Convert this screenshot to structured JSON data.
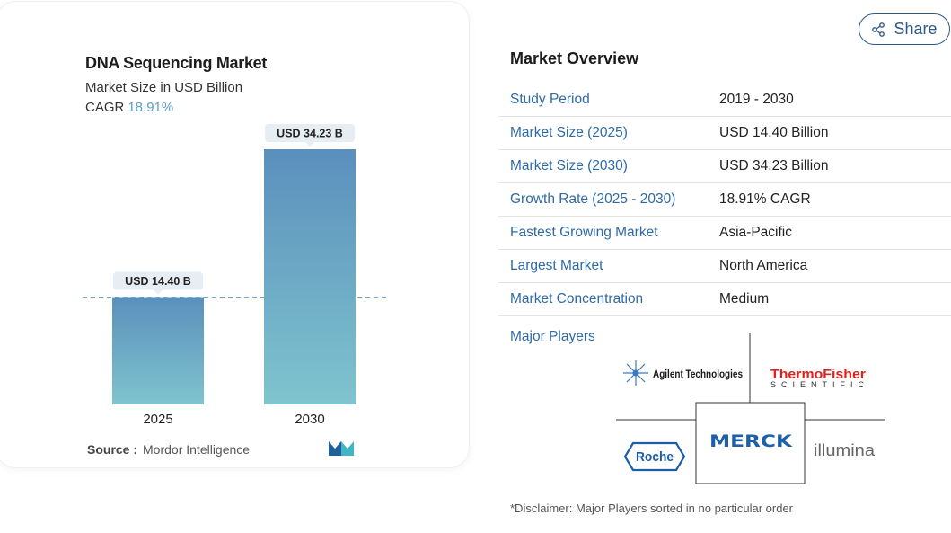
{
  "chart_data": {
    "type": "bar",
    "title": "DNA Sequencing Market",
    "subtitle": "Market Size in USD Billion",
    "cagr_label": "CAGR",
    "cagr_value": "18.91%",
    "categories": [
      "2025",
      "2030"
    ],
    "values": [
      14.4,
      34.23
    ],
    "data_labels": [
      "USD 14.40 B",
      "USD 34.23 B"
    ],
    "ylim": [
      0,
      34.23
    ],
    "reference_line_value": 14.4,
    "grid": false,
    "colors": {
      "bar_top": "#5b8fbc",
      "bar_bottom": "#7fc4ce",
      "label_bg": "#e6eef4",
      "ref_line": "#6fa7c9"
    }
  },
  "source": {
    "label": "Source :",
    "value": "Mordor Intelligence"
  },
  "share_label": "Share",
  "overview": {
    "title": "Market Overview",
    "rows": [
      {
        "label": "Study Period",
        "value": "2019 - 2030"
      },
      {
        "label": "Market Size (2025)",
        "value": "USD 14.40 Billion"
      },
      {
        "label": "Market Size (2030)",
        "value": "USD 34.23 Billion"
      },
      {
        "label": "Growth Rate (2025 - 2030)",
        "value": "18.91% CAGR"
      },
      {
        "label": "Fastest Growing Market",
        "value": "Asia-Pacific"
      },
      {
        "label": "Largest Market",
        "value": "North America"
      },
      {
        "label": "Market Concentration",
        "value": "Medium"
      }
    ]
  },
  "major_players": {
    "label": "Major Players",
    "logos": {
      "agilent": "Agilent Technologies",
      "thermo_line1": "ThermoFisher",
      "thermo_line2": "SCIENTIFIC",
      "merck": "MERCK",
      "roche": "Roche",
      "illumina": "illumina"
    }
  },
  "disclaimer": "*Disclaimer: Major Players sorted in no particular order"
}
